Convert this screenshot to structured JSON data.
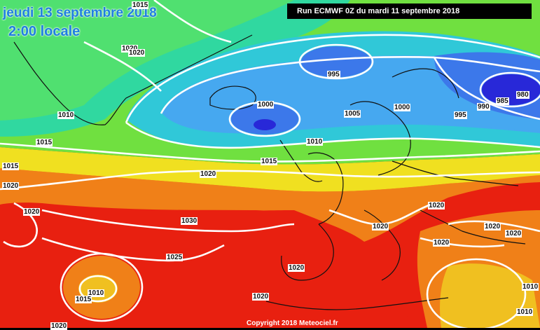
{
  "header": {
    "date_line": "jeudi 13 septembre 2018",
    "time_line": "2:00 locale",
    "run_label": "Run ECMWF 0Z du mardi 11 septembre 2018"
  },
  "footer": {
    "copyright": "Copyright 2018 Meteociel.fr"
  },
  "colors": {
    "h_980": "#2828d8",
    "h_990": "#3c78ea",
    "h_995": "#46a8f0",
    "h_1005": "#30c8d8",
    "h_1010": "#30d8a0",
    "h_1015": "#70e040",
    "h_1020": "#f0e020",
    "h_1025": "#f08018",
    "h_1030": "#e82010",
    "isobar": "#ffffff"
  },
  "isobar_labels": [
    "1015",
    "1020",
    "1020",
    "1010",
    "1015",
    "1015",
    "1020",
    "1020",
    "1030",
    "1025",
    "1010",
    "1015",
    "1020",
    "1020",
    "995",
    "1000",
    "1005",
    "1000",
    "995",
    "990",
    "985",
    "980",
    "1010",
    "1015",
    "1020",
    "1020",
    "1020",
    "1020",
    "1020",
    "1020",
    "1020",
    "1010",
    "1010"
  ]
}
